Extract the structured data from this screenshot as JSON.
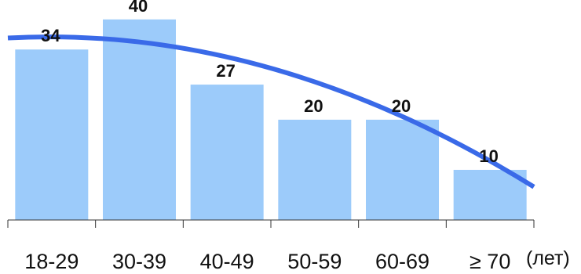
{
  "chart_data": {
    "type": "bar",
    "categories": [
      "18-29",
      "30-39",
      "40-49",
      "50-59",
      "60-69",
      "≥ 70"
    ],
    "values": [
      34,
      40,
      27,
      20,
      20,
      10
    ],
    "x_unit_label": "(лет)",
    "ylim": [
      0,
      42
    ],
    "grid": false,
    "legend": "none",
    "trendline": {
      "type": "curve",
      "values_at_ends": [
        36.3,
        6.6
      ]
    },
    "colors": {
      "bar": "#9ccbfa",
      "trendline": "#3a6ae8",
      "axis": "#333333",
      "text": "#111111"
    }
  }
}
